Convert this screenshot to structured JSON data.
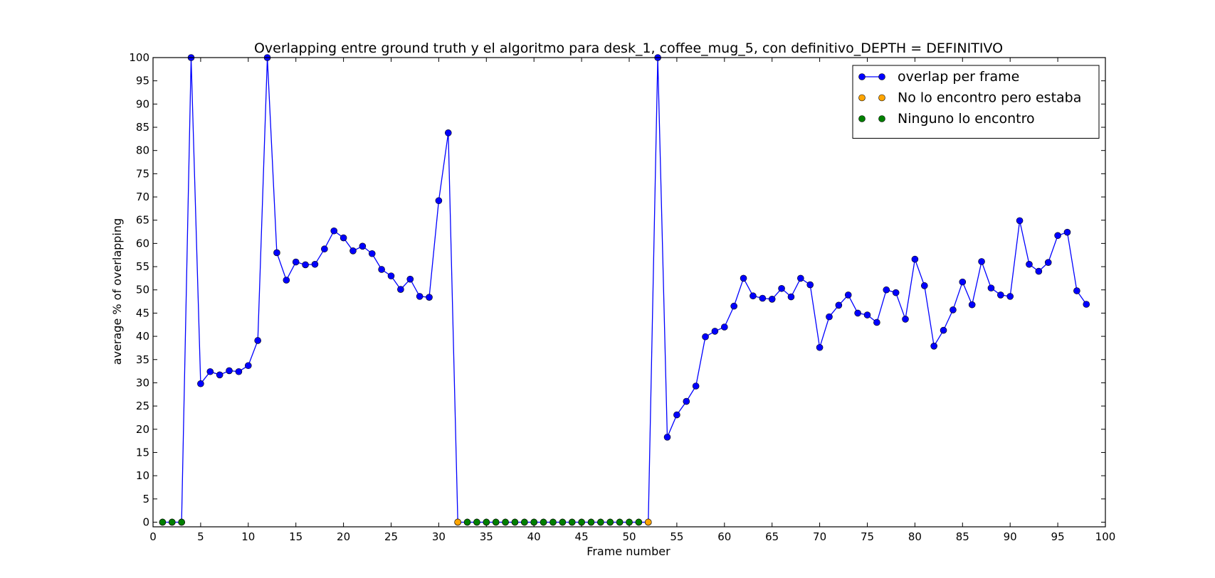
{
  "chart_data": {
    "type": "line",
    "title": "Overlapping entre ground truth y el algoritmo para desk_1, coffee_mug_5, con definitivo_DEPTH = DEFINITIVO",
    "xlabel": "Frame number",
    "ylabel": "average % of overlapping",
    "xlim": [
      0,
      100
    ],
    "ylim": [
      -1,
      100
    ],
    "x_ticks": [
      0,
      5,
      10,
      15,
      20,
      25,
      30,
      35,
      40,
      45,
      50,
      55,
      60,
      65,
      70,
      75,
      80,
      85,
      90,
      95,
      100
    ],
    "y_ticks": [
      0,
      5,
      10,
      15,
      20,
      25,
      30,
      35,
      40,
      45,
      50,
      55,
      60,
      65,
      70,
      75,
      80,
      85,
      90,
      95,
      100
    ],
    "grid": false,
    "legend_position": "top-right",
    "series": [
      {
        "name": "overlap per frame",
        "color": "#0000ff",
        "marker": "circle",
        "line": true,
        "x": [
          1,
          2,
          3,
          4,
          5,
          6,
          7,
          8,
          9,
          10,
          11,
          12,
          13,
          14,
          15,
          16,
          17,
          18,
          19,
          20,
          21,
          22,
          23,
          24,
          25,
          26,
          27,
          28,
          29,
          30,
          31,
          32,
          33,
          34,
          35,
          36,
          37,
          38,
          39,
          40,
          41,
          42,
          43,
          44,
          45,
          46,
          47,
          48,
          49,
          50,
          51,
          52,
          53,
          54,
          55,
          56,
          57,
          58,
          59,
          60,
          61,
          62,
          63,
          64,
          65,
          66,
          67,
          68,
          69,
          70,
          71,
          72,
          73,
          74,
          75,
          76,
          77,
          78,
          79,
          80,
          81,
          82,
          83,
          84,
          85,
          86,
          87,
          88,
          89,
          90,
          91,
          92,
          93,
          94,
          95,
          96,
          97,
          98
        ],
        "y": [
          0,
          0,
          0,
          100,
          29.8,
          32.4,
          31.7,
          32.6,
          32.4,
          33.7,
          39.1,
          100,
          58.0,
          52.1,
          56.0,
          55.4,
          55.5,
          58.8,
          62.7,
          61.2,
          58.4,
          59.4,
          57.8,
          54.4,
          53.0,
          50.1,
          52.3,
          48.6,
          48.4,
          69.2,
          83.8,
          0,
          0,
          0,
          0,
          0,
          0,
          0,
          0,
          0,
          0,
          0,
          0,
          0,
          0,
          0,
          0,
          0,
          0,
          0,
          0,
          0,
          100,
          18.3,
          23.1,
          26.0,
          29.3,
          39.9,
          41.1,
          42.0,
          46.5,
          52.5,
          48.7,
          48.2,
          48.0,
          50.3,
          48.5,
          52.5,
          51.1,
          37.6,
          44.2,
          46.7,
          48.9,
          45.0,
          44.6,
          43.0,
          50.0,
          49.4,
          43.7,
          56.6,
          50.9,
          37.9,
          41.3,
          45.7,
          51.7,
          46.8,
          56.1,
          50.4,
          48.9,
          48.6,
          64.9,
          55.5,
          54.0,
          55.9,
          61.7,
          62.4,
          49.8,
          46.9
        ]
      },
      {
        "name": "No lo encontro pero estaba",
        "color": "#ffa500",
        "marker": "circle",
        "line": false,
        "x": [
          32,
          52
        ],
        "y": [
          0,
          0
        ]
      },
      {
        "name": "Ninguno lo encontro",
        "color": "#008000",
        "marker": "circle",
        "line": false,
        "x": [
          1,
          2,
          3,
          33,
          34,
          35,
          36,
          37,
          38,
          39,
          40,
          41,
          42,
          43,
          44,
          45,
          46,
          47,
          48,
          49,
          50,
          51
        ],
        "y": [
          0,
          0,
          0,
          0,
          0,
          0,
          0,
          0,
          0,
          0,
          0,
          0,
          0,
          0,
          0,
          0,
          0,
          0,
          0,
          0,
          0,
          0
        ]
      }
    ]
  }
}
